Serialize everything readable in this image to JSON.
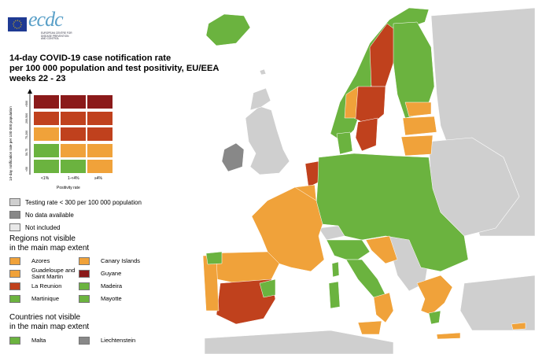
{
  "logo": {
    "text": "ecdc",
    "subtitle": "EUROPEAN CENTRE FOR DISEASE PREVENTION AND CONTROL"
  },
  "title": {
    "line1": "14-day COVID-19 case notification rate",
    "line2": "per 100 000 population and test positivity, EU/EEA",
    "line3": "weeks 22 - 23"
  },
  "matrix": {
    "y_axis_label": "14-day notification rate per 100 000 population",
    "y_ticks": [
      ">500",
      "200-500",
      "75-200",
      "50-75",
      "<50"
    ],
    "x_axis_label": "Positivity rate",
    "x_ticks": [
      "<1%",
      "1-<4%",
      "≥4%"
    ],
    "rows": [
      [
        "#8b1a1a",
        "#8b1a1a",
        "#8b1a1a"
      ],
      [
        "#c0411d",
        "#c0411d",
        "#c0411d"
      ],
      [
        "#f0a23a",
        "#c0411d",
        "#c0411d"
      ],
      [
        "#6bb33f",
        "#f0a23a",
        "#f0a23a"
      ],
      [
        "#6bb33f",
        "#6bb33f",
        "#f0a23a"
      ]
    ]
  },
  "legend": {
    "testing": "Testing rate < 300 per 100 000 population",
    "no_data": "No data available",
    "not_included": "Not included",
    "regions_header_1": "Regions not visible",
    "regions_header_2": "in the main map extent",
    "regions": [
      {
        "name": "Azores",
        "color": "#f0a23a"
      },
      {
        "name": "Canary Islands",
        "color": "#f0a23a"
      },
      {
        "name": "Guadeloupe and Saint Martin",
        "color": "#f0a23a"
      },
      {
        "name": "Guyane",
        "color": "#8b1a1a"
      },
      {
        "name": "La Reunion",
        "color": "#c0411d"
      },
      {
        "name": "Madeira",
        "color": "#6bb33f"
      },
      {
        "name": "Martinique",
        "color": "#6bb33f"
      },
      {
        "name": "Mayotte",
        "color": "#6bb33f"
      }
    ],
    "countries_header_1": "Countries not visible",
    "countries_header_2": "in the main map extent",
    "countries": [
      {
        "name": "Malta",
        "color": "#6bb33f"
      },
      {
        "name": "Liechtenstein",
        "color": "#888888"
      }
    ]
  },
  "colors": {
    "green": "#6bb33f",
    "orange": "#f0a23a",
    "red": "#c0411d",
    "darkred": "#8b1a1a",
    "grey_nodata": "#888888",
    "grey_outside": "#cccccc",
    "sea": "#ffffff"
  }
}
